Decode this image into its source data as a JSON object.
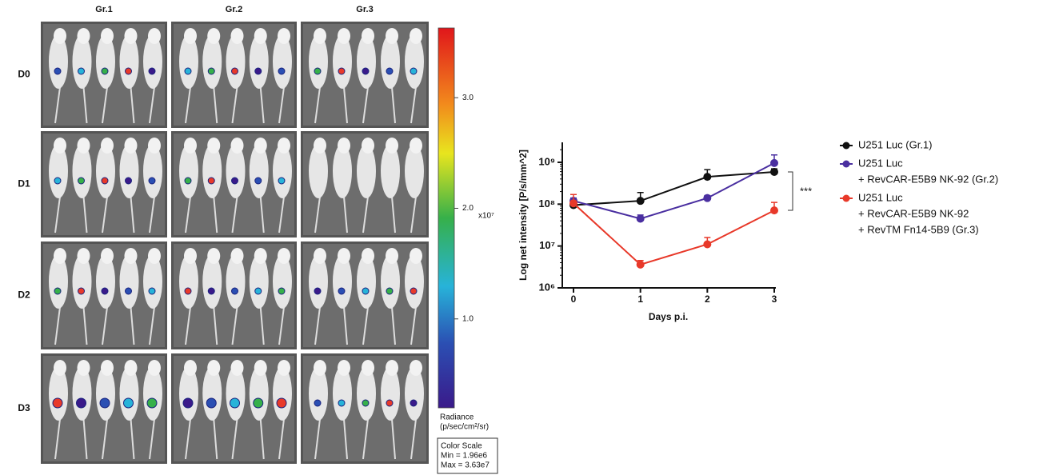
{
  "panels": {
    "columns": [
      "Gr.1",
      "Gr.2",
      "Gr.3"
    ],
    "rows": [
      "D0",
      "D1",
      "D2",
      "D3"
    ]
  },
  "colorbar": {
    "lim": [
      0.196,
      3.63
    ],
    "ticks": [
      {
        "value": 1,
        "label": "1.0"
      },
      {
        "value": 2,
        "label": "2.0"
      },
      {
        "value": 3,
        "label": "3.0"
      }
    ],
    "multiplier": "x10⁷",
    "label_lines": [
      "Radiance",
      "(p/sec/cm²/sr)"
    ],
    "scale_box": [
      "Color Scale",
      "Min = 1.96e6",
      "Max = 3.63e7"
    ]
  },
  "chart_data": {
    "type": "line",
    "xlabel": "Days p.i.",
    "ylabel": "Log net intensity  [P/s/mm^2]",
    "x": [
      0,
      1,
      2,
      3
    ],
    "xlim": [
      0,
      3
    ],
    "xticks": [
      0,
      1,
      2,
      3
    ],
    "ylim": [
      1000000,
      3000000000
    ],
    "log_y": true,
    "yticks": [
      {
        "value": 1000000,
        "label": "10⁶"
      },
      {
        "value": 10000000,
        "label": "10⁷"
      },
      {
        "value": 100000000,
        "label": "10⁸"
      },
      {
        "value": 1000000000,
        "label": "10⁹"
      }
    ],
    "series": [
      {
        "name": [
          "U251 Luc (Gr.1)"
        ],
        "color": "#111111",
        "values": [
          95000000,
          120000000,
          450000000,
          590000000
        ],
        "errors": [
          10000000,
          70000000,
          220000000,
          110000000
        ]
      },
      {
        "name": [
          "U251 Luc",
          "+ RevCAR-E5B9 NK-92 (Gr.2)"
        ],
        "color": "#4a2fa0",
        "values": [
          120000000,
          45000000,
          140000000,
          960000000
        ],
        "errors": [
          20000000,
          10000000,
          20000000,
          540000000
        ]
      },
      {
        "name": [
          "U251 Luc",
          "+ RevCAR-E5B9 NK-92",
          "+ RevTM Fn14-5B9 (Gr.3)"
        ],
        "color": "#e8392a",
        "values": [
          105000000,
          3600000,
          11000000,
          71000000
        ],
        "errors": [
          65000000,
          900000,
          5000000,
          39000000
        ]
      }
    ],
    "annotation": "***"
  }
}
